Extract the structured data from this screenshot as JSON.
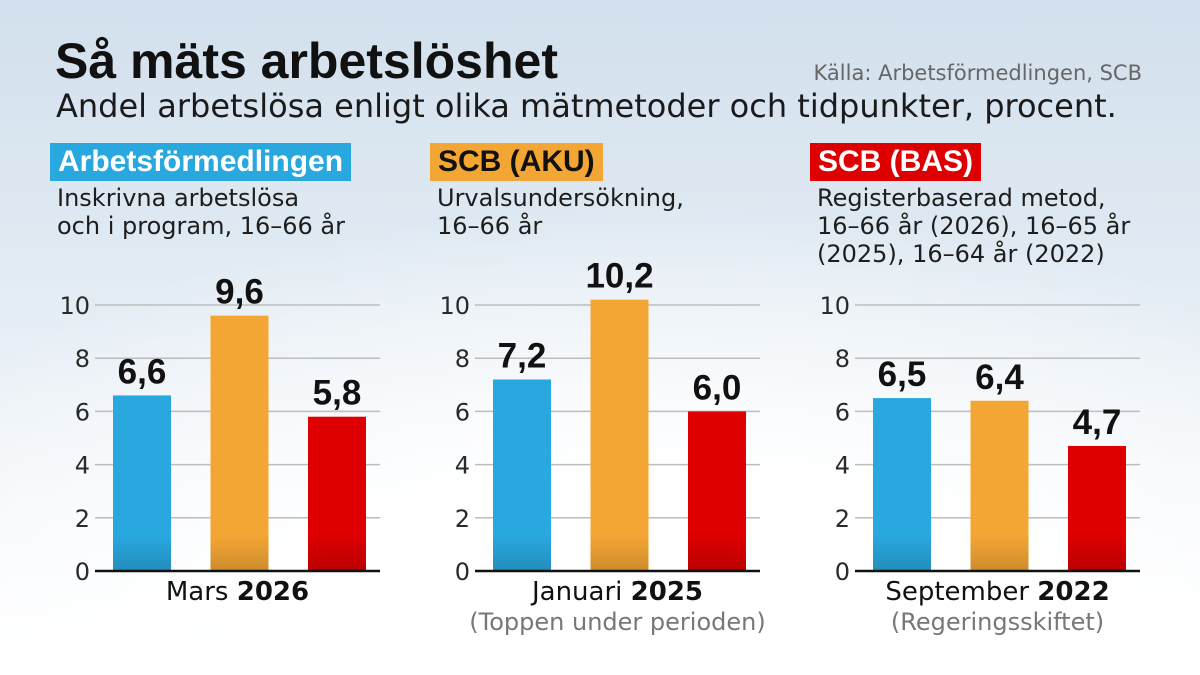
{
  "chart_data": {
    "type": "bar",
    "title": "Så mäts arbetslöshet",
    "subtitle": "Andel arbetslösa enligt olika mätmetoder och tidpunkter, procent.",
    "source": "Källa: Arbetsförmedlingen, SCB",
    "categories": [
      "Mars 2026",
      "Januari 2025",
      "September 2022"
    ],
    "category_notes": [
      "",
      "(Toppen under perioden)",
      "(Regeringsskiftet)"
    ],
    "series": [
      {
        "name": "Arbetsförmedlingen",
        "description": [
          "Inskrivna arbetslösa",
          "och i program, 16–66 år"
        ],
        "color": "#29a8e0",
        "label_text_color": "#ffffff",
        "values": [
          6.6,
          7.2,
          6.5
        ]
      },
      {
        "name": "SCB (AKU)",
        "description": [
          "Urvalsundersökning,",
          "16–66 år"
        ],
        "color": "#f4a634",
        "label_text_color": "#111111",
        "values": [
          9.6,
          10.2,
          6.4
        ]
      },
      {
        "name": "SCB (BAS)",
        "description": [
          "Registerbaserad metod,",
          "16–66 år (2026), 16–65 år",
          "(2025), 16–64 år (2022)"
        ],
        "color": "#de0000",
        "label_text_color": "#ffffff",
        "values": [
          5.8,
          6.0,
          4.7
        ]
      }
    ],
    "ylim": [
      0,
      10
    ],
    "yticks": [
      0,
      2,
      4,
      6,
      8,
      10
    ],
    "grid": true,
    "legend": "top"
  }
}
